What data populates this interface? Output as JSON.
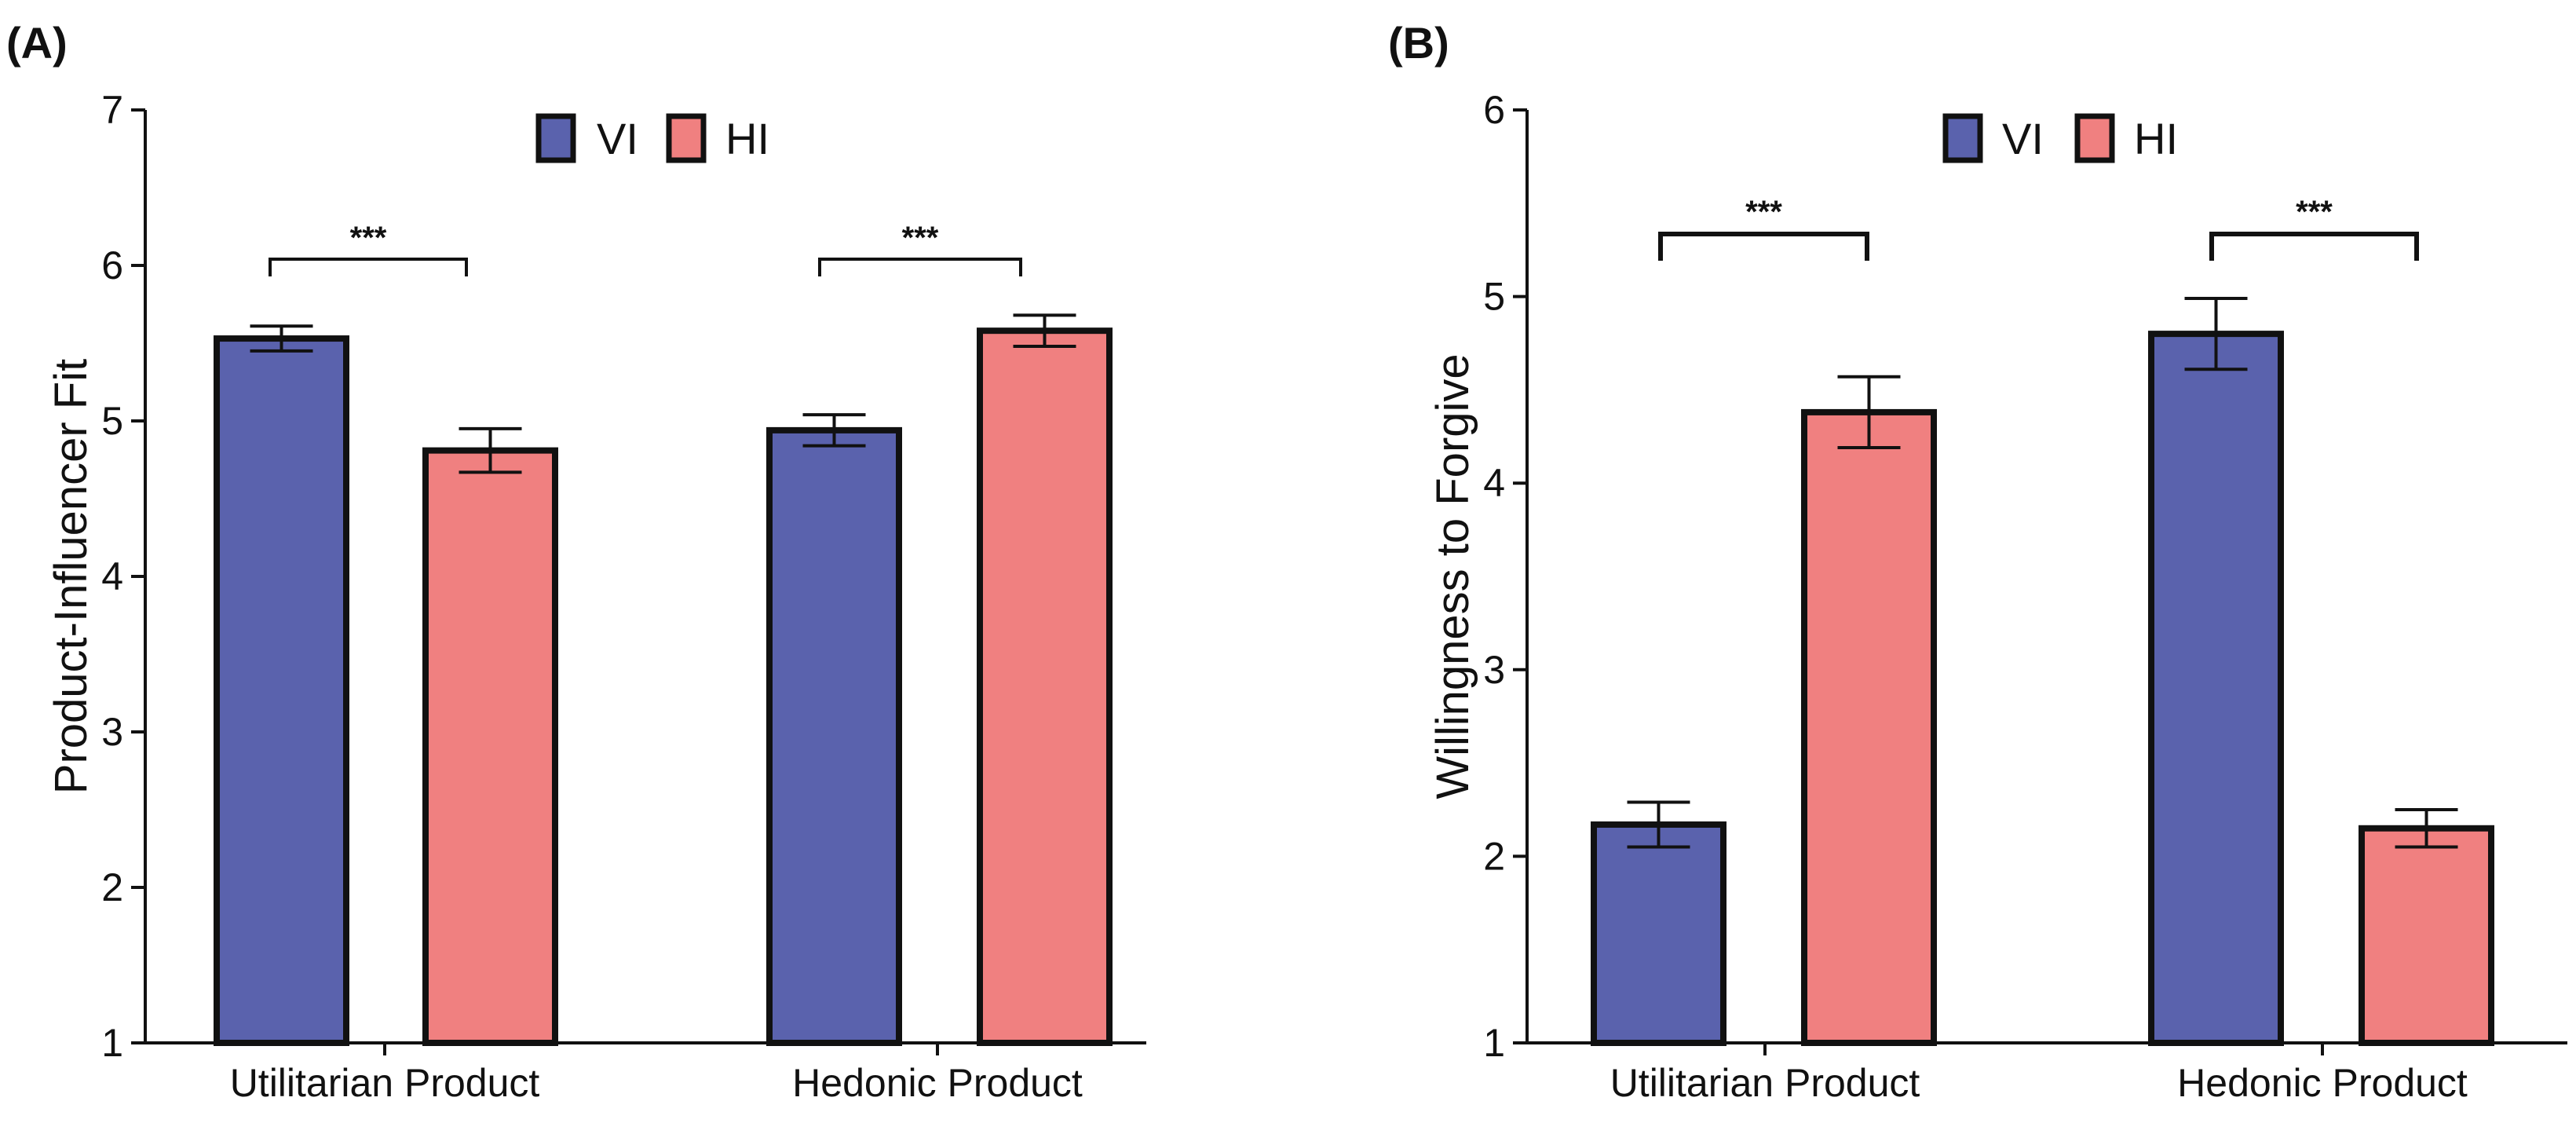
{
  "chart_data": [
    {
      "type": "bar",
      "panel_label": "(A)",
      "title": "",
      "xlabel": "",
      "ylabel": "Product-Influencer Fit",
      "ylim": [
        1,
        7
      ],
      "yticks": [
        "1",
        "2",
        "3",
        "4",
        "5",
        "6",
        "7"
      ],
      "categories": [
        "Utilitarian Product",
        "Hedonic Product"
      ],
      "legend_position": "top-center",
      "series": [
        {
          "name": "VI",
          "color": "#5a62ad",
          "values": [
            5.53,
            4.94
          ],
          "errors": [
            0.08,
            0.1
          ]
        },
        {
          "name": "HI",
          "color": "#f08080",
          "values": [
            4.81,
            5.58
          ],
          "errors": [
            0.14,
            0.1
          ]
        }
      ],
      "annotations": [
        {
          "label": "***",
          "category": "Utilitarian Product"
        },
        {
          "label": "***",
          "category": "Hedonic Product"
        }
      ]
    },
    {
      "type": "bar",
      "panel_label": "(B)",
      "title": "",
      "xlabel": "",
      "ylabel": "Willingness to Forgive",
      "ylim": [
        1,
        6
      ],
      "yticks": [
        "1",
        "2",
        "3",
        "4",
        "5",
        "6"
      ],
      "categories": [
        "Utilitarian Product",
        "Hedonic Product"
      ],
      "legend_position": "top-center",
      "series": [
        {
          "name": "VI",
          "color": "#5a62ad",
          "values": [
            2.17,
            4.8
          ],
          "errors": [
            0.12,
            0.19
          ]
        },
        {
          "name": "HI",
          "color": "#f08080",
          "values": [
            4.38,
            2.15
          ],
          "errors": [
            0.19,
            0.1
          ]
        }
      ],
      "annotations": [
        {
          "label": "***",
          "category": "Utilitarian Product"
        },
        {
          "label": "***",
          "category": "Hedonic Product"
        }
      ]
    }
  ]
}
